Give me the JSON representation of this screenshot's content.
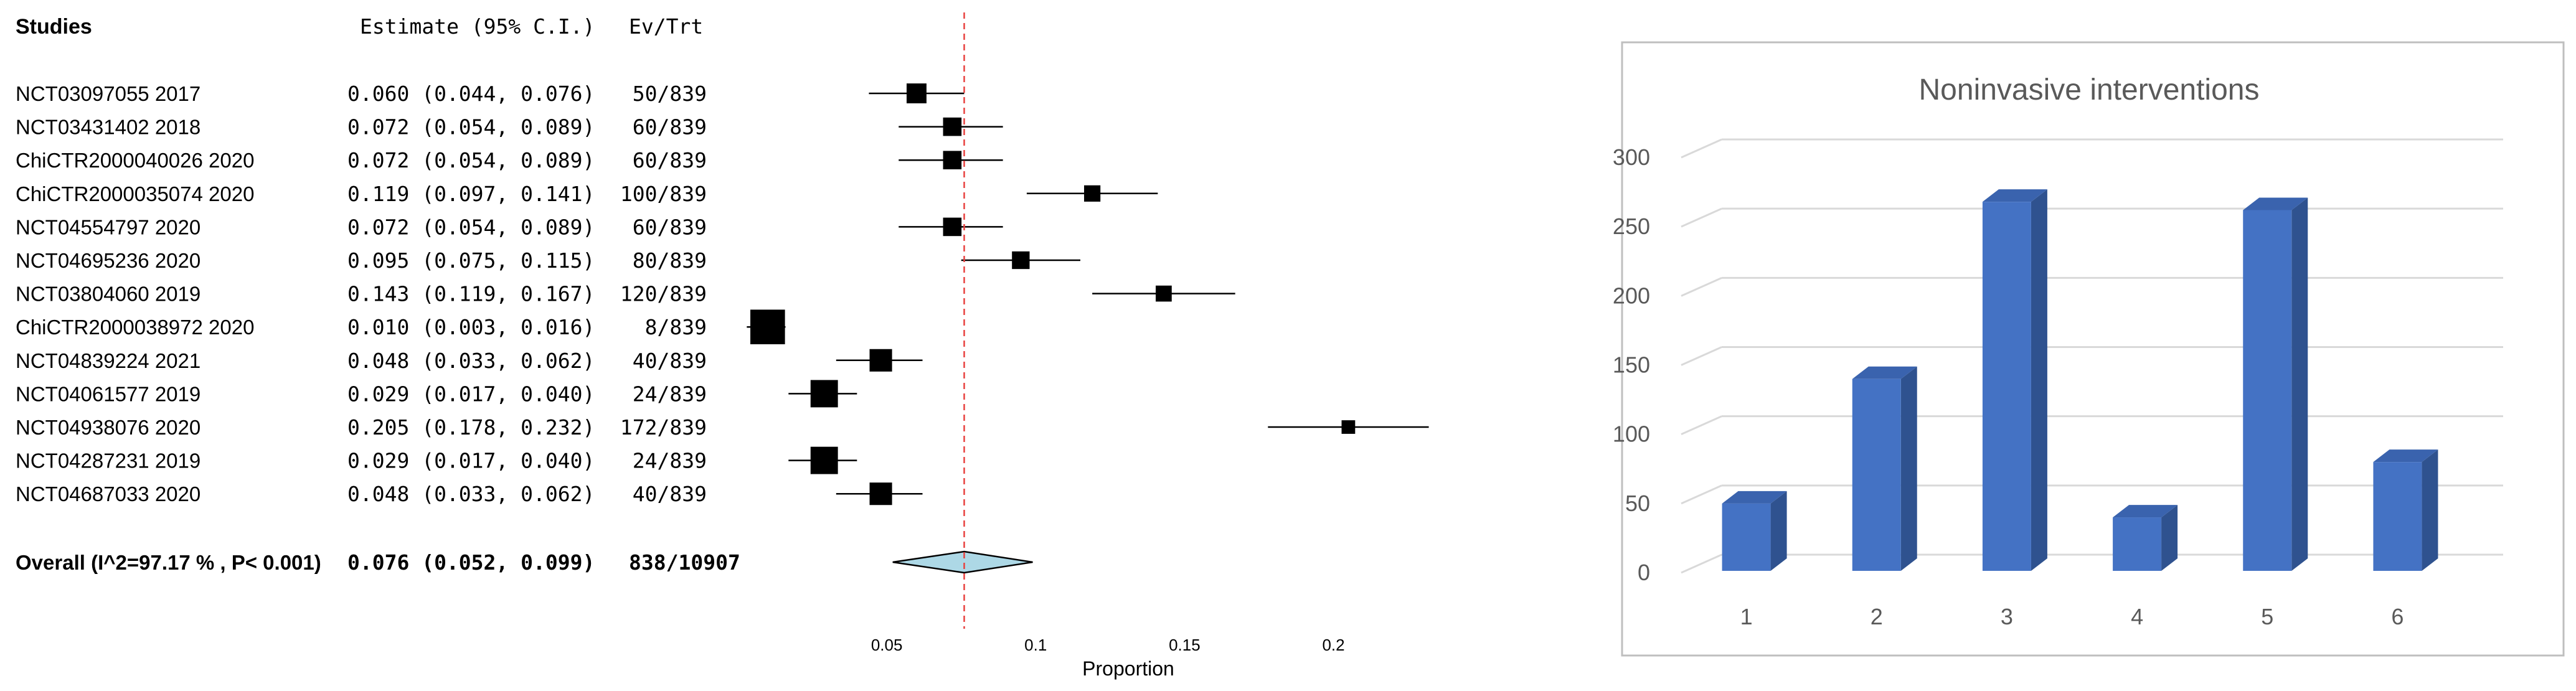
{
  "forest": {
    "headers": {
      "studies": "Studies",
      "estimate": "Estimate (95% C.I.)",
      "events": "Ev/Trt"
    },
    "studies": [
      {
        "name": "NCT03097055  2017",
        "est": 0.06,
        "lo": 0.044,
        "hi": 0.076,
        "est_text": "0.060 (0.044, 0.076)",
        "ev": "50/839",
        "weight": 6.9
      },
      {
        "name": "NCT03431402 2018",
        "est": 0.072,
        "lo": 0.054,
        "hi": 0.089,
        "est_text": "0.072 (0.054, 0.089)",
        "ev": "60/839",
        "weight": 6.0
      },
      {
        "name": "ChiCTR2000040026 2020",
        "est": 0.072,
        "lo": 0.054,
        "hi": 0.089,
        "est_text": "0.072 (0.054, 0.089)",
        "ev": "60/839",
        "weight": 6.0
      },
      {
        "name": "ChiCTR2000035074 2020",
        "est": 0.119,
        "lo": 0.097,
        "hi": 0.141,
        "est_text": "0.119 (0.097, 0.141)",
        "ev": "100/839",
        "weight": 4.7
      },
      {
        "name": "NCT04554797 2020",
        "est": 0.072,
        "lo": 0.054,
        "hi": 0.089,
        "est_text": "0.072 (0.054, 0.089)",
        "ev": "60/839",
        "weight": 6.0
      },
      {
        "name": "NCT04695236 2020",
        "est": 0.095,
        "lo": 0.075,
        "hi": 0.115,
        "est_text": "0.095 (0.075, 0.115)",
        "ev": "80/839",
        "weight": 5.5
      },
      {
        "name": "NCT03804060 2019",
        "est": 0.143,
        "lo": 0.119,
        "hi": 0.167,
        "est_text": "0.143 (0.119, 0.167)",
        "ev": "120/839",
        "weight": 4.5
      },
      {
        "name": "ChiCTR2000038972 2020",
        "est": 0.01,
        "lo": 0.003,
        "hi": 0.016,
        "est_text": "0.010 (0.003, 0.016)",
        "ev": "8/839",
        "weight": 16.0
      },
      {
        "name": "NCT04839224 2021",
        "est": 0.048,
        "lo": 0.033,
        "hi": 0.062,
        "est_text": "0.048 (0.033, 0.062)",
        "ev": "40/839",
        "weight": 8.5
      },
      {
        "name": "NCT04061577 2019",
        "est": 0.029,
        "lo": 0.017,
        "hi": 0.04,
        "est_text": "0.029 (0.017, 0.040)",
        "ev": "24/839",
        "weight": 11.5
      },
      {
        "name": "NCT04938076 2020",
        "est": 0.205,
        "lo": 0.178,
        "hi": 0.232,
        "est_text": "0.205 (0.178, 0.232)",
        "ev": "172/839",
        "weight": 3.0
      },
      {
        "name": "NCT04287231 2019",
        "est": 0.029,
        "lo": 0.017,
        "hi": 0.04,
        "est_text": "0.029 (0.017, 0.040)",
        "ev": "24/839",
        "weight": 11.5
      },
      {
        "name": "NCT04687033 2020",
        "est": 0.048,
        "lo": 0.033,
        "hi": 0.062,
        "est_text": "0.048 (0.033, 0.062)",
        "ev": "40/839",
        "weight": 8.5
      }
    ],
    "overall": {
      "label": "Overall (I^2=97.17 % , P< 0.001)",
      "est": 0.076,
      "lo": 0.052,
      "hi": 0.099,
      "est_text": "0.076 (0.052, 0.099)",
      "ev": "838/10907"
    },
    "axis": {
      "label": "Proportion",
      "xlim": [
        0.0,
        0.23
      ],
      "ticks": [
        0.05,
        0.1,
        0.15,
        0.2
      ],
      "tick_labels": [
        "0.05",
        "0.1",
        "0.15",
        "0.2"
      ],
      "reference_line": 0.076
    }
  },
  "bar": {
    "chart_frame": "panel",
    "title": "Noninvasive interventions",
    "categories": [
      "1",
      "2",
      "3",
      "4",
      "5",
      "6"
    ],
    "values": [
      50,
      140,
      268,
      40,
      262,
      80
    ],
    "ylim": [
      0,
      300
    ],
    "yticks": [
      0,
      50,
      100,
      150,
      200,
      250,
      300
    ],
    "ytick_labels": [
      "0",
      "50",
      "100",
      "150",
      "200",
      "250",
      "300"
    ]
  },
  "chart_data": [
    {
      "type": "scatter",
      "title": "",
      "xlabel": "Proportion",
      "ylabel": "",
      "xlim": [
        0.0,
        0.23
      ],
      "categories": [
        "NCT03097055  2017",
        "NCT03431402 2018",
        "ChiCTR2000040026 2020",
        "ChiCTR2000035074 2020",
        "NCT04554797 2020",
        "NCT04695236 2020",
        "NCT03804060 2019",
        "ChiCTR2000038972 2020",
        "NCT04839224 2021",
        "NCT04061577 2019",
        "NCT04938076 2020",
        "NCT04287231 2019",
        "NCT04687033 2020",
        "Overall"
      ],
      "values": [
        0.06,
        0.072,
        0.072,
        0.119,
        0.072,
        0.095,
        0.143,
        0.01,
        0.048,
        0.029,
        0.205,
        0.029,
        0.048,
        0.076
      ],
      "lower": [
        0.044,
        0.054,
        0.054,
        0.097,
        0.054,
        0.075,
        0.119,
        0.003,
        0.033,
        0.017,
        0.178,
        0.017,
        0.033,
        0.052
      ],
      "upper": [
        0.076,
        0.089,
        0.089,
        0.141,
        0.089,
        0.115,
        0.167,
        0.016,
        0.062,
        0.04,
        0.232,
        0.04,
        0.062,
        0.099
      ]
    },
    {
      "type": "bar",
      "title": "Noninvasive interventions",
      "categories": [
        "1",
        "2",
        "3",
        "4",
        "5",
        "6"
      ],
      "values": [
        50,
        140,
        268,
        40,
        262,
        80
      ],
      "xlabel": "",
      "ylabel": "",
      "ylim": [
        0,
        300
      ]
    }
  ],
  "colors": {
    "bar_front": "#4472C4",
    "bar_side": "#2F528F",
    "bar_top": "#3A63AE",
    "diamond_fill": "#ADD8E6",
    "reference_line": "#E8403E",
    "gridline": "#D9D9D9",
    "frame": "#BFBFBF",
    "text": "#000000",
    "muted_text": "#595959"
  }
}
